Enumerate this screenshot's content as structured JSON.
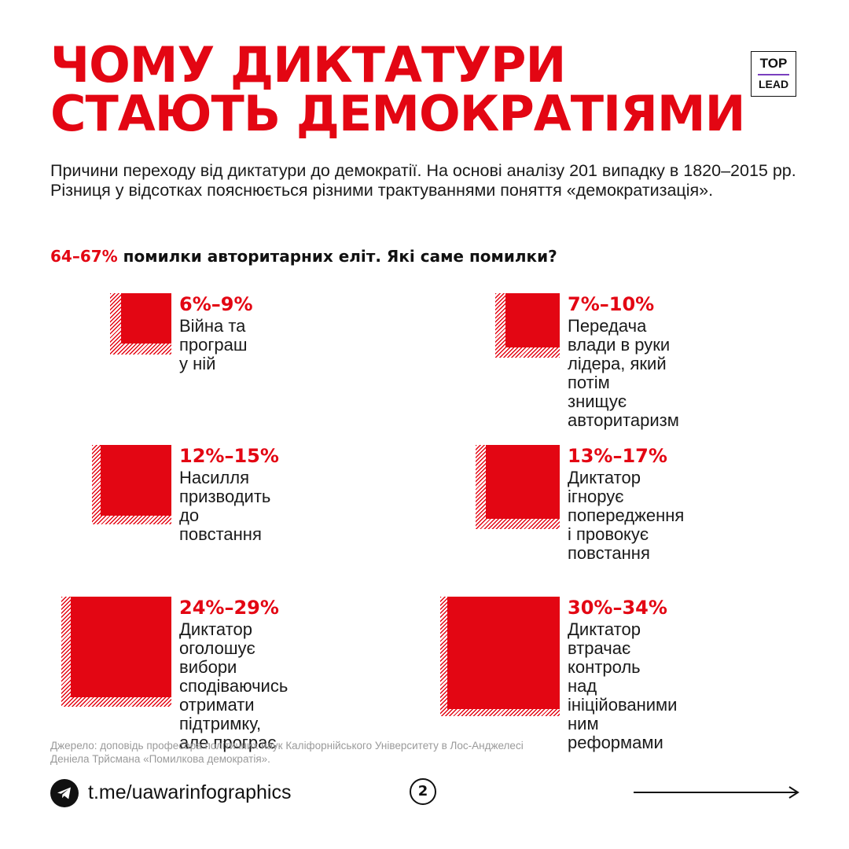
{
  "title": {
    "line1": "ЧОМУ ДИКТАТУРИ",
    "line2": "СТАЮТЬ ДЕМОКРАТІЯМИ"
  },
  "logo": {
    "top": "TOP",
    "bottom": "LEAD"
  },
  "intro": "Причини переходу від диктатури до демократії. На основі аналізу 201 випадку в 1820–2015 рр. Різниця у відсотках пояснюється різними трактуваннями поняття «демократизація».",
  "subhead": {
    "accent": "64–67%",
    "text": " помилки авторитарних еліт. Які саме помилки?"
  },
  "chart_data": {
    "type": "bar",
    "title": "ЧОМУ ДИКТАТУРИ СТАЮТЬ ДЕМОКРАТІЯМИ",
    "unit": "%",
    "items": [
      {
        "range": "6%–9%",
        "low": 6,
        "high": 9,
        "label": "Війна та програш у ній"
      },
      {
        "range": "7%–10%",
        "low": 7,
        "high": 10,
        "label": "Передача влади в руки\nлідера, який потім\nзнищує авторитаризм"
      },
      {
        "range": "12%–15%",
        "low": 12,
        "high": 15,
        "label": "Насилля призводить\nдо повстання"
      },
      {
        "range": "13%–17%",
        "low": 13,
        "high": 17,
        "label": "Диктатор ігнорує\nпопередження\nі провокує повстання"
      },
      {
        "range": "24%–29%",
        "low": 24,
        "high": 29,
        "label": "Диктатор оголошує\nвибори сподіваючись\nотримати підтримку,\nале програє"
      },
      {
        "range": "30%–34%",
        "low": 30,
        "high": 34,
        "label": "Диктатор\nвтрачає контроль\nнад ініційованими\nним реформами"
      }
    ]
  },
  "colors": {
    "accent": "#e30613",
    "text": "#1a1a1a",
    "muted": "#9a9a9a"
  },
  "source": "Джерело: доповідь професора політичних наук Каліфорнійського Університету в Лос-Анджелесі Деніела Трйсмана «Помилкова демократія».",
  "footer": {
    "icon": "telegram-icon",
    "link": "t.me/uawarinfographics",
    "page": "2",
    "next_icon": "arrow-right-icon"
  }
}
